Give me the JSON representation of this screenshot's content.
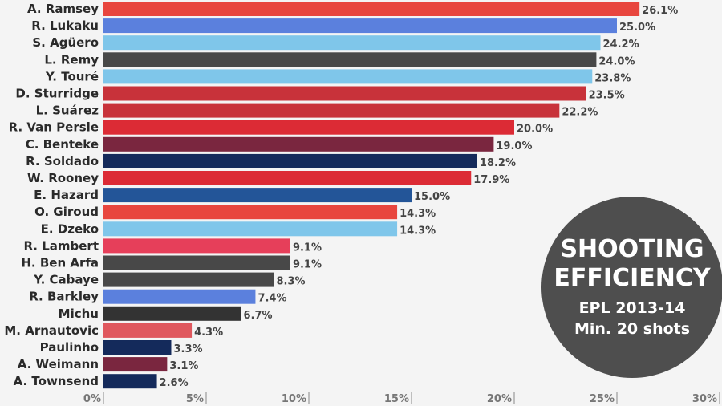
{
  "chart_data": {
    "type": "bar",
    "orientation": "horizontal",
    "title_lines": [
      "SHOOTING",
      "EFFICIENCY"
    ],
    "subtitle_lines": [
      "EPL 2013-14",
      "Min. 20 shots"
    ],
    "xlim": [
      0,
      30
    ],
    "xticks": [
      "0%",
      "5%",
      "10%",
      "15%",
      "20%",
      "25%",
      "30%"
    ],
    "categories": [
      "A. Ramsey",
      "R. Lukaku",
      "S. Agüero",
      "L. Remy",
      "Y. Touré",
      "D. Sturridge",
      "L. Suárez",
      "R. Van Persie",
      "C. Benteke",
      "R. Soldado",
      "W. Rooney",
      "E. Hazard",
      "O. Giroud",
      "E. Dzeko",
      "R. Lambert",
      "H. Ben Arfa",
      "Y. Cabaye",
      "R. Barkley",
      "Michu",
      "M. Arnautovic",
      "Paulinho",
      "A. Weimann",
      "A. Townsend"
    ],
    "values": [
      26.1,
      25.0,
      24.2,
      24.0,
      23.8,
      23.5,
      22.2,
      20.0,
      19.0,
      18.2,
      17.9,
      15.0,
      14.3,
      14.3,
      9.1,
      9.1,
      8.3,
      7.4,
      6.7,
      4.3,
      3.3,
      3.1,
      2.6
    ],
    "value_labels": [
      "26.1%",
      "25.0%",
      "24.2%",
      "24.0%",
      "23.8%",
      "23.5%",
      "22.2%",
      "20.0%",
      "19.0%",
      "18.2%",
      "17.9%",
      "15.0%",
      "14.3%",
      "14.3%",
      "9.1%",
      "9.1%",
      "8.3%",
      "7.4%",
      "6.7%",
      "4.3%",
      "3.3%",
      "3.1%",
      "2.6%"
    ],
    "colors": [
      "#e8463e",
      "#5b80dd",
      "#7fc6ea",
      "#484848",
      "#7fc6ea",
      "#c8323a",
      "#c8323a",
      "#dc2b35",
      "#7a263f",
      "#142a5b",
      "#dc2b35",
      "#235598",
      "#e8463e",
      "#7fc6ea",
      "#e63f5a",
      "#484848",
      "#484848",
      "#5b80dd",
      "#333333",
      "#e0585e",
      "#142a5b",
      "#7a263f",
      "#142a5b"
    ]
  }
}
